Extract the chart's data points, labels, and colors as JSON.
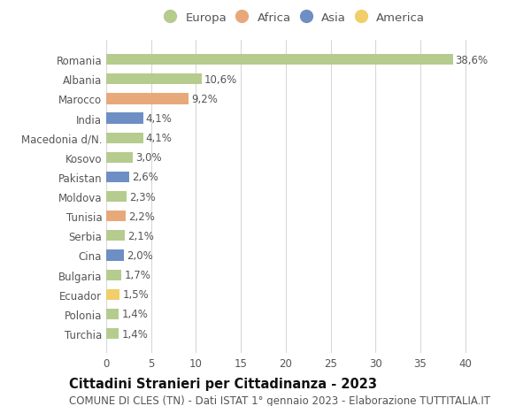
{
  "countries": [
    "Romania",
    "Albania",
    "Marocco",
    "India",
    "Macedonia d/N.",
    "Kosovo",
    "Pakistan",
    "Moldova",
    "Tunisia",
    "Serbia",
    "Cina",
    "Bulgaria",
    "Ecuador",
    "Polonia",
    "Turchia"
  ],
  "values": [
    38.6,
    10.6,
    9.2,
    4.1,
    4.1,
    3.0,
    2.6,
    2.3,
    2.2,
    2.1,
    2.0,
    1.7,
    1.5,
    1.4,
    1.4
  ],
  "labels": [
    "38,6%",
    "10,6%",
    "9,2%",
    "4,1%",
    "4,1%",
    "3,0%",
    "2,6%",
    "2,3%",
    "2,2%",
    "2,1%",
    "2,0%",
    "1,7%",
    "1,5%",
    "1,4%",
    "1,4%"
  ],
  "continents": [
    "Europa",
    "Europa",
    "Africa",
    "Asia",
    "Europa",
    "Europa",
    "Asia",
    "Europa",
    "Africa",
    "Europa",
    "Asia",
    "Europa",
    "America",
    "Europa",
    "Europa"
  ],
  "colors": {
    "Europa": "#b5cc8e",
    "Africa": "#e8a97a",
    "Asia": "#6e8fc4",
    "America": "#f0ce6a"
  },
  "legend_order": [
    "Europa",
    "Africa",
    "Asia",
    "America"
  ],
  "xlim": [
    0,
    42
  ],
  "xticks": [
    0,
    5,
    10,
    15,
    20,
    25,
    30,
    35,
    40
  ],
  "title": "Cittadini Stranieri per Cittadinanza - 2023",
  "subtitle": "COMUNE DI CLES (TN) - Dati ISTAT 1° gennaio 2023 - Elaborazione TUTTITALIA.IT",
  "bg_color": "#ffffff",
  "grid_color": "#d8d8d8",
  "bar_height": 0.55,
  "label_fontsize": 8.5,
  "tick_fontsize": 8.5,
  "legend_fontsize": 9.5,
  "title_fontsize": 10.5,
  "subtitle_fontsize": 8.5
}
